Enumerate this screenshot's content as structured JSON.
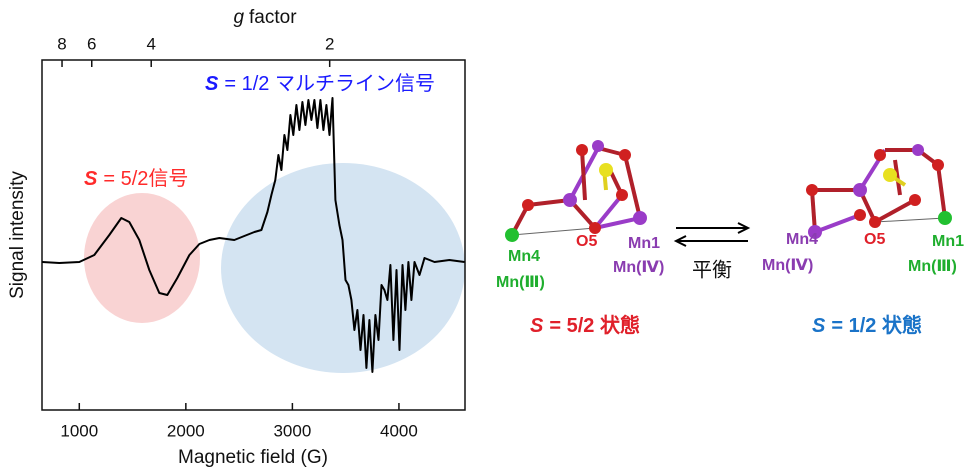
{
  "chart_data": {
    "type": "line",
    "xlabel": "Magnetic field (G)",
    "ylabel": "Signal intensity",
    "x2label": {
      "symbol": "g",
      "text": "factor"
    },
    "xlim": [
      650,
      4620
    ],
    "ylim": [
      -148,
      202
    ],
    "xticks": [
      1000,
      2000,
      3000,
      4000
    ],
    "x2ticks": [
      {
        "value": 838,
        "label": "8"
      },
      {
        "value": 1117,
        "label": "6"
      },
      {
        "value": 1675,
        "label": "4"
      },
      {
        "value": 3350,
        "label": "2"
      }
    ],
    "color": "#000000",
    "x": [
      653,
      812,
      1000,
      1141,
      1282,
      1394,
      1469,
      1563,
      1657,
      1751,
      1826,
      1920,
      2033,
      2127,
      2221,
      2315,
      2455,
      2549,
      2643,
      2709,
      2765,
      2803,
      2840,
      2869,
      2897,
      2925,
      2953,
      2981,
      3009,
      3038,
      3066,
      3094,
      3122,
      3150,
      3178,
      3207,
      3235,
      3263,
      3291,
      3319,
      3348,
      3376,
      3404,
      3441,
      3470,
      3498,
      3526,
      3554,
      3582,
      3610,
      3639,
      3667,
      3695,
      3723,
      3751,
      3779,
      3808,
      3836,
      3864,
      3892,
      3920,
      3948,
      3977,
      4005,
      4033,
      4061,
      4089,
      4117,
      4146,
      4193,
      4240,
      4334,
      4474,
      4615
    ],
    "values": [
      0,
      -1,
      0,
      7,
      27,
      44,
      40,
      22,
      -8,
      -31,
      -33,
      -16,
      7,
      18,
      22,
      24,
      22,
      26,
      30,
      32,
      50,
      67,
      82,
      107,
      92,
      127,
      112,
      147,
      127,
      157,
      132,
      160,
      137,
      162,
      142,
      162,
      134,
      162,
      132,
      157,
      127,
      164,
      62,
      37,
      22,
      -18,
      -23,
      -38,
      -68,
      -48,
      -88,
      -53,
      -106,
      -58,
      -110,
      -53,
      -78,
      -23,
      -28,
      -38,
      -3,
      -78,
      -8,
      -88,
      -3,
      -48,
      0,
      -38,
      0,
      -13,
      4,
      0,
      2,
      0
    ],
    "annotations": [
      {
        "symbol": "S",
        "text": "= 5/2信号"
      },
      {
        "symbol": "S",
        "text": "= 1/2 マルチライン信号"
      }
    ]
  },
  "diagram": {
    "states": [
      {
        "atoms": [
          {
            "name": "Mn4",
            "state": "Mn(Ⅲ)"
          },
          {
            "name": "O5"
          },
          {
            "name": "Mn1",
            "state": "Mn(Ⅳ)"
          }
        ],
        "symbol": "S",
        "caption": "= 5/2 状態"
      },
      {
        "atoms": [
          {
            "name": "Mn4",
            "state": "Mn(Ⅳ)"
          },
          {
            "name": "O5"
          },
          {
            "name": "Mn1",
            "state": "Mn(Ⅲ)"
          }
        ],
        "symbol": "S",
        "caption": "= 1/2 状態"
      }
    ],
    "equilibrium": "平衡"
  }
}
